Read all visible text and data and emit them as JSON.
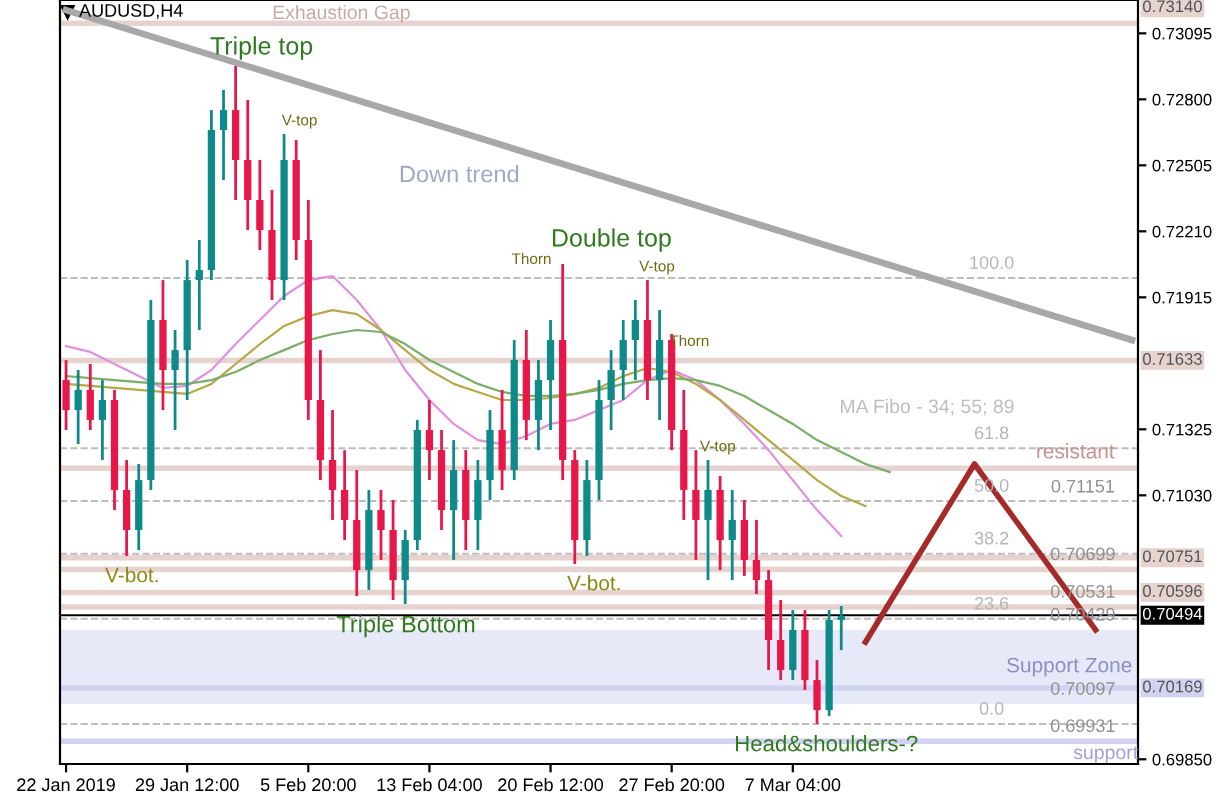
{
  "chart_data": {
    "type": "candlestick",
    "title": "AUDUSD,H4",
    "categories": [
      "22 Jan 2019",
      null,
      null,
      null,
      null,
      null,
      null,
      null,
      null,
      null,
      "29 Jan 12:00",
      null,
      null,
      null,
      null,
      null,
      null,
      null,
      null,
      null,
      "5 Feb 20:00",
      null,
      null,
      null,
      null,
      null,
      null,
      null,
      null,
      null,
      "13 Feb 04:00",
      null,
      null,
      null,
      null,
      null,
      null,
      null,
      null,
      null,
      "20 Feb 12:00",
      null,
      null,
      null,
      null,
      null,
      null,
      null,
      null,
      null,
      "27 Feb 20:00",
      null,
      null,
      null,
      null,
      null,
      null,
      null,
      null,
      null,
      "7 Mar 04:00",
      null,
      null,
      null,
      null,
      null,
      null,
      null,
      null,
      null,
      null,
      null,
      null,
      null,
      null,
      null,
      null,
      null,
      null,
      null,
      null,
      null,
      null,
      null,
      null,
      null,
      null,
      null,
      null
    ],
    "ohlc": [
      [
        0.71545,
        0.71635,
        0.71322,
        0.71411
      ],
      [
        0.71411,
        0.7159,
        0.71259,
        0.71501
      ],
      [
        0.71501,
        0.71617,
        0.71322,
        0.71367
      ],
      [
        0.71367,
        0.71545,
        0.71188,
        0.71456
      ],
      [
        0.71456,
        0.71501,
        0.70964,
        0.71054
      ],
      [
        0.71054,
        0.71188,
        0.70759,
        0.70875
      ],
      [
        0.70875,
        0.7117,
        0.70785,
        0.71098
      ],
      [
        0.71098,
        0.71903,
        0.71054,
        0.71814
      ],
      [
        0.71814,
        0.71992,
        0.71411,
        0.7159
      ],
      [
        0.7159,
        0.71769,
        0.71322,
        0.71679
      ],
      [
        0.71679,
        0.72082,
        0.71456,
        0.71992
      ],
      [
        0.71992,
        0.72171,
        0.71769,
        0.72037
      ],
      [
        0.72037,
        0.72752,
        0.71992,
        0.72663
      ],
      [
        0.72663,
        0.72842,
        0.72439,
        0.72752
      ],
      [
        0.72752,
        0.72949,
        0.7235,
        0.72529
      ],
      [
        0.72529,
        0.72797,
        0.72216,
        0.7235
      ],
      [
        0.7235,
        0.72529,
        0.72126,
        0.72216
      ],
      [
        0.72216,
        0.72395,
        0.71903,
        0.71992
      ],
      [
        0.71992,
        0.72645,
        0.71903,
        0.72529
      ],
      [
        0.72529,
        0.72618,
        0.72082,
        0.72171
      ],
      [
        0.72171,
        0.7235,
        0.71367,
        0.71456
      ],
      [
        0.71456,
        0.71679,
        0.71098,
        0.71188
      ],
      [
        0.71188,
        0.71411,
        0.7092,
        0.71054
      ],
      [
        0.71054,
        0.71232,
        0.7083,
        0.7092
      ],
      [
        0.7092,
        0.71143,
        0.7058,
        0.70696
      ],
      [
        0.70696,
        0.71054,
        0.70607,
        0.70964
      ],
      [
        0.70964,
        0.71054,
        0.70741,
        0.70875
      ],
      [
        0.70875,
        0.71009,
        0.70562,
        0.70651
      ],
      [
        0.70651,
        0.70875,
        0.70544,
        0.7083
      ],
      [
        0.7083,
        0.71367,
        0.70785,
        0.71322
      ],
      [
        0.71322,
        0.71456,
        0.71098,
        0.71232
      ],
      [
        0.71232,
        0.71322,
        0.70875,
        0.70964
      ],
      [
        0.70964,
        0.71277,
        0.70741,
        0.71143
      ],
      [
        0.71143,
        0.71232,
        0.70785,
        0.7092
      ],
      [
        0.7092,
        0.71188,
        0.70785,
        0.71098
      ],
      [
        0.71098,
        0.71411,
        0.71009,
        0.71322
      ],
      [
        0.71322,
        0.71501,
        0.71054,
        0.71143
      ],
      [
        0.71143,
        0.71724,
        0.71098,
        0.71635
      ],
      [
        0.71635,
        0.71769,
        0.71277,
        0.71367
      ],
      [
        0.71367,
        0.71635,
        0.71232,
        0.71545
      ],
      [
        0.71545,
        0.71814,
        0.71322,
        0.71724
      ],
      [
        0.71724,
        0.72064,
        0.71098,
        0.71188
      ],
      [
        0.71188,
        0.71232,
        0.70723,
        0.7083
      ],
      [
        0.7083,
        0.71188,
        0.70759,
        0.71098
      ],
      [
        0.71098,
        0.71545,
        0.71009,
        0.71456
      ],
      [
        0.71456,
        0.71679,
        0.71322,
        0.7159
      ],
      [
        0.7159,
        0.71814,
        0.71456,
        0.71724
      ],
      [
        0.71724,
        0.71903,
        0.71545,
        0.71814
      ],
      [
        0.71814,
        0.71992,
        0.71456,
        0.71545
      ],
      [
        0.71545,
        0.71858,
        0.71367,
        0.71724
      ],
      [
        0.71724,
        0.71751,
        0.71232,
        0.71322
      ],
      [
        0.71322,
        0.71501,
        0.7092,
        0.71054
      ],
      [
        0.71054,
        0.71232,
        0.70741,
        0.7092
      ],
      [
        0.7092,
        0.71188,
        0.70651,
        0.71054
      ],
      [
        0.71054,
        0.71116,
        0.70696,
        0.7083
      ],
      [
        0.7083,
        0.71054,
        0.70651,
        0.7092
      ],
      [
        0.7092,
        0.71009,
        0.70669,
        0.70741
      ],
      [
        0.70741,
        0.7092,
        0.70589,
        0.70651
      ],
      [
        0.70651,
        0.70696,
        0.70249,
        0.70383
      ],
      [
        0.70383,
        0.70562,
        0.70204,
        0.70249
      ],
      [
        0.70249,
        0.70517,
        0.70204,
        0.70428
      ],
      [
        0.70428,
        0.70517,
        0.7016,
        0.70204
      ],
      [
        0.70204,
        0.70294,
        0.70008,
        0.7007
      ],
      [
        0.7007,
        0.70517,
        0.70043,
        0.70473
      ],
      [
        0.70473,
        0.70535,
        0.70338,
        0.7049
      ],
      null,
      null,
      null,
      null,
      null,
      null,
      null,
      null,
      null,
      null,
      null,
      null,
      null,
      null,
      null,
      null,
      null,
      null,
      null,
      null,
      null,
      null,
      null,
      null
    ],
    "colors": [
      "#e8174a",
      "#0e8a8a",
      "#e8174a",
      "#0e8a8a",
      "#e8174a",
      "#e8174a",
      "#0e8a8a",
      "#0e8a8a",
      "#e8174a",
      "#0e8a8a",
      "#0e8a8a",
      "#0e8a8a",
      "#0e8a8a",
      "#0e8a8a",
      "#e8174a",
      "#e8174a",
      "#e8174a",
      "#e8174a",
      "#0e8a8a",
      "#e8174a",
      "#e8174a",
      "#e8174a",
      "#e8174a",
      "#e8174a",
      "#e8174a",
      "#0e8a8a",
      "#e8174a",
      "#e8174a",
      "#0e8a8a",
      "#0e8a8a",
      "#e8174a",
      "#e8174a",
      "#0e8a8a",
      "#e8174a",
      "#0e8a8a",
      "#0e8a8a",
      "#e8174a",
      "#0e8a8a",
      "#e8174a",
      "#0e8a8a",
      "#0e8a8a",
      "#e8174a",
      "#e8174a",
      "#0e8a8a",
      "#0e8a8a",
      "#0e8a8a",
      "#0e8a8a",
      "#0e8a8a",
      "#e8174a",
      "#0e8a8a",
      "#e8174a",
      "#e8174a",
      "#e8174a",
      "#0e8a8a",
      "#e8174a",
      "#0e8a8a",
      "#e8174a",
      "#e8174a",
      "#e8174a",
      "#e8174a",
      "#0e8a8a",
      "#e8174a",
      "#e8174a",
      "#0e8a8a",
      "#0e8a8a",
      null,
      null,
      null,
      null,
      null,
      null,
      null,
      null,
      null,
      null,
      null,
      null,
      null,
      null,
      null,
      null,
      null,
      null,
      null,
      null,
      null,
      null,
      null,
      null
    ],
    "series": [
      {
        "type": "line",
        "color": "#e090e0",
        "values": [
          0.71697,
          null,
          0.71671,
          null,
          0.71617,
          null,
          0.71563,
          null,
          0.7151,
          null,
          0.71519,
          null,
          0.7159,
          null,
          0.71706,
          null,
          0.71814,
          null,
          0.71921,
          null,
          0.71992,
          null,
          0.7201,
          null,
          0.71903,
          null,
          0.71769,
          null,
          0.7159,
          null,
          0.71456,
          null,
          0.71349,
          null,
          0.71277,
          null,
          0.71259,
          null,
          0.71295,
          null,
          0.71349,
          null,
          0.71367,
          null,
          0.71411,
          null,
          0.71456,
          null,
          0.71545,
          null,
          0.7159,
          null,
          0.71545,
          null,
          0.71456,
          null,
          0.71349,
          null,
          0.71232,
          null,
          0.71098,
          null,
          0.70964,
          null,
          0.70848,
          null,
          null,
          null,
          null,
          null,
          null,
          null,
          null,
          null,
          null,
          null,
          null,
          null,
          null,
          null,
          null,
          null,
          null,
          null,
          null,
          null,
          null,
          null,
          null
        ]
      },
      {
        "type": "line",
        "color": "#b8a848",
        "values": [
          0.71528,
          null,
          0.71519,
          null,
          0.7151,
          null,
          0.71501,
          null,
          0.71492,
          null,
          0.71483,
          null,
          0.71528,
          null,
          0.71617,
          null,
          0.71706,
          null,
          0.71787,
          null,
          0.71831,
          null,
          0.71858,
          null,
          0.7184,
          null,
          0.71769,
          null,
          0.71679,
          null,
          0.7159,
          null,
          0.71528,
          null,
          0.71492,
          null,
          0.71456,
          null,
          0.71456,
          null,
          0.71465,
          null,
          0.71483,
          null,
          0.7151,
          null,
          0.71563,
          null,
          0.71599,
          null,
          0.71581,
          null,
          0.71528,
          null,
          0.71456,
          null,
          0.71367,
          null,
          0.71277,
          null,
          0.71188,
          null,
          0.71098,
          null,
          0.71027,
          null,
          0.70982,
          null,
          null,
          null,
          null,
          null,
          null,
          null,
          null,
          null,
          null,
          null,
          null,
          null,
          null,
          null,
          null,
          null,
          null,
          null,
          null,
          null,
          null
        ]
      },
      {
        "type": "line",
        "color": "#7aae6a",
        "values": [
          0.71563,
          null,
          0.71554,
          null,
          0.71545,
          null,
          0.71536,
          null,
          0.71528,
          null,
          0.71528,
          null,
          0.71545,
          null,
          0.71581,
          null,
          0.71635,
          null,
          0.71679,
          null,
          0.71724,
          null,
          0.71751,
          null,
          0.71769,
          null,
          0.7176,
          null,
          0.71706,
          null,
          0.71635,
          null,
          0.71581,
          null,
          0.71528,
          null,
          0.71492,
          null,
          0.71474,
          null,
          0.71474,
          null,
          0.71483,
          null,
          0.71501,
          null,
          0.71528,
          null,
          0.71545,
          null,
          0.71554,
          null,
          0.71545,
          null,
          0.71519,
          null,
          0.71474,
          null,
          0.71411,
          null,
          0.71349,
          null,
          0.71277,
          null,
          0.71224,
          null,
          0.7117,
          null,
          0.71134,
          null,
          null,
          null,
          null,
          null,
          null,
          null,
          null,
          null,
          null,
          null,
          null,
          null,
          null,
          null,
          null,
          null,
          null,
          null,
          null
        ]
      },
      {
        "type": "line",
        "color": "#a8a8a8",
        "values": [
          0.73199,
          null,
          null,
          null,
          null,
          null,
          null,
          null,
          null,
          null,
          null,
          null,
          null,
          null,
          null,
          null,
          null,
          null,
          null,
          null,
          null,
          null,
          null,
          null,
          null,
          null,
          null,
          null,
          null,
          null,
          null,
          null,
          null,
          null,
          null,
          null,
          null,
          null,
          null,
          null,
          null,
          null,
          null,
          null,
          null,
          null,
          null,
          null,
          null,
          null,
          null,
          null,
          null,
          null,
          null,
          null,
          null,
          null,
          null,
          null,
          null,
          null,
          null,
          null,
          null,
          null,
          null,
          null,
          null,
          null,
          null,
          null,
          null,
          null,
          null,
          null,
          null,
          null,
          null,
          null,
          null,
          null,
          null,
          null,
          null,
          null,
          null,
          null,
          0.71724
        ]
      },
      {
        "type": "line",
        "color": "#a52a2a",
        "values": [
          null,
          null,
          null,
          null,
          null,
          null,
          null,
          null,
          null,
          null,
          null,
          null,
          null,
          null,
          null,
          null,
          null,
          null,
          null,
          null,
          null,
          null,
          null,
          null,
          null,
          null,
          null,
          null,
          null,
          null,
          null,
          null,
          null,
          null,
          null,
          null,
          null,
          null,
          null,
          null,
          null,
          null,
          null,
          null,
          null,
          null,
          null,
          null,
          null,
          null,
          null,
          null,
          null,
          null,
          null,
          null,
          null,
          null,
          null,
          null,
          null,
          null,
          null,
          null,
          null,
          null,
          0.70374,
          null,
          null,
          null,
          null,
          null,
          null,
          null,
          null,
          0.7117,
          null,
          null,
          null,
          null,
          null,
          null,
          null,
          null,
          null,
          0.70428,
          null,
          null,
          null
        ]
      }
    ],
    "ylim": [
      0.69829,
      0.73244
    ],
    "yticks": [
      {
        "value": 0.73095,
        "label": "0.73095"
      },
      {
        "value": 0.728,
        "label": "0.72800"
      },
      {
        "value": 0.72505,
        "label": "0.72505"
      },
      {
        "value": 0.7221,
        "label": "0.72210"
      },
      {
        "value": 0.71915,
        "label": "0.71915"
      },
      {
        "value": 0.71325,
        "label": "0.71325"
      },
      {
        "value": 0.7103,
        "label": "0.71030"
      },
      {
        "value": 0.6985,
        "label": "0.69850"
      }
    ],
    "ref_lines": [
      {
        "axis": "y",
        "value": 0.7314,
        "label": "0.73140",
        "color": "#e6d2ce"
      },
      {
        "axis": "y",
        "value": 0.71633,
        "label": "0.71633",
        "color": "#e6d2ce"
      },
      {
        "axis": "y",
        "value": 0.71151,
        "color": "#e6d2ce"
      },
      {
        "axis": "y",
        "value": 0.70751,
        "label": "0.70751",
        "color": "#e6d2ce"
      },
      {
        "axis": "y",
        "value": 0.70699,
        "color": "#e6d2ce"
      },
      {
        "axis": "y",
        "value": 0.70596,
        "label": "0.70596",
        "color": "#e6d2ce"
      },
      {
        "axis": "y",
        "value": 0.70531,
        "color": "#e6d2ce"
      },
      {
        "axis": "y",
        "value": 0.70494,
        "label": "0.70494",
        "color": "#000000"
      },
      {
        "axis": "y",
        "value": 0.70169,
        "label": "0.70169",
        "color": "#d2d2f2"
      },
      {
        "axis": "y",
        "value": 0.69931,
        "color": "#d2d2f2"
      },
      {
        "axis": "y",
        "value": 0.72001,
        "color": "#bdbdbd",
        "line_style": "dashed"
      },
      {
        "axis": "y",
        "value": 0.7124,
        "color": "#bdbdbd",
        "line_style": "dashed"
      },
      {
        "axis": "y",
        "value": 0.71005,
        "color": "#bdbdbd",
        "line_style": "dashed"
      },
      {
        "axis": "y",
        "value": 0.70769,
        "color": "#bdbdbd",
        "line_style": "dashed"
      },
      {
        "axis": "y",
        "value": 0.70478,
        "color": "#bdbdbd",
        "line_style": "dashed"
      },
      {
        "axis": "y",
        "value": 0.70008,
        "color": "#bdbdbd",
        "line_style": "dashed"
      }
    ],
    "bands": [
      {
        "axis": "y",
        "from": 0.70097,
        "to": 0.70429,
        "label": "Support Zone",
        "color": "#e8e9f8"
      }
    ],
    "annotations": [
      "Exhaustion Gap",
      "Triple top",
      {
        "text": "V-top",
        "y": 0.72645
      },
      "Down trend",
      "Double top",
      "Thorn",
      {
        "text": "V-top",
        "y": 0.71992
      },
      "Thorn",
      "MA Fibo - 34; 55; 89",
      {
        "text": "resistant",
        "y": 0.71151
      },
      {
        "text": "V-top",
        "y": 0.71188
      },
      {
        "text": "V-bot.",
        "y": 0.70759
      },
      {
        "text": "Triple Bottom",
        "y": 0.70544
      },
      {
        "text": "V-bot.",
        "y": 0.70723
      },
      {
        "text": "Head&shoulders-?",
        "y": 0.70008
      },
      "support",
      {
        "text": "0.71151",
        "y": 0.71151
      },
      {
        "text": "0.70699",
        "y": 0.70699
      },
      {
        "text": "0.70531",
        "y": 0.70531
      },
      {
        "text": "0.70429",
        "y": 0.70429
      },
      {
        "text": "0.70097",
        "y": 0.70097
      },
      {
        "text": "0.69931",
        "y": 0.69931
      },
      {
        "text": "100.0",
        "y": 0.72001
      },
      {
        "text": "61.8",
        "y": 0.7124
      },
      {
        "text": "50.0",
        "y": 0.71005
      },
      {
        "text": "38.2",
        "y": 0.70769
      },
      {
        "text": "23.6",
        "y": 0.70478
      },
      {
        "text": "0.0",
        "y": 0.70008
      }
    ],
    "grid": false
  }
}
